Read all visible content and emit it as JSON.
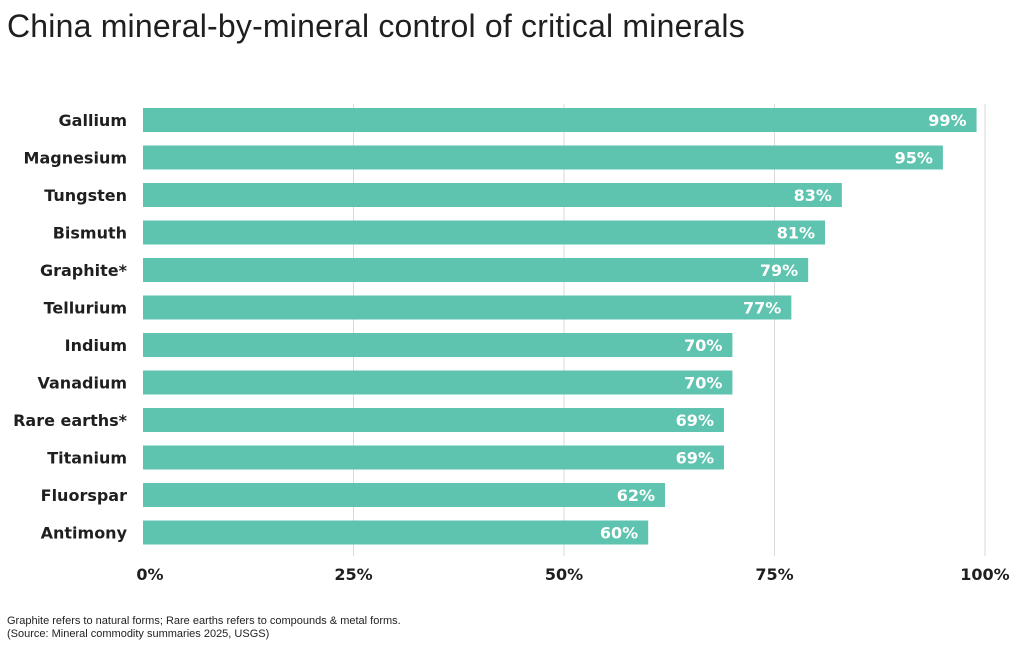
{
  "chart_data": {
    "type": "bar",
    "orientation": "horizontal",
    "title": "China mineral-by-mineral control of critical minerals",
    "categories": [
      "Gallium",
      "Magnesium",
      "Tungsten",
      "Bismuth",
      "Graphite*",
      "Tellurium",
      "Indium",
      "Vanadium",
      "Rare earths*",
      "Titanium",
      "Fluorspar",
      "Antimony"
    ],
    "values": [
      99,
      95,
      83,
      81,
      79,
      77,
      70,
      70,
      69,
      69,
      62,
      60
    ],
    "value_labels": [
      "99%",
      "95%",
      "83%",
      "81%",
      "79%",
      "77%",
      "70%",
      "70%",
      "69%",
      "69%",
      "62%",
      "60%"
    ],
    "xlim": [
      0,
      100
    ],
    "xticks": [
      0,
      25,
      50,
      75,
      100
    ],
    "xtick_labels": [
      "0%",
      "25%",
      "50%",
      "75%",
      "100%"
    ],
    "xlabel": "",
    "ylabel": "",
    "grid": true,
    "bar_color": "#5ec4b0"
  },
  "footnote": {
    "line1": "Graphite refers to natural forms; Rare earths refers to compounds & metal forms.",
    "line2": "(Source: Mineral commodity summaries 2025, USGS)"
  }
}
